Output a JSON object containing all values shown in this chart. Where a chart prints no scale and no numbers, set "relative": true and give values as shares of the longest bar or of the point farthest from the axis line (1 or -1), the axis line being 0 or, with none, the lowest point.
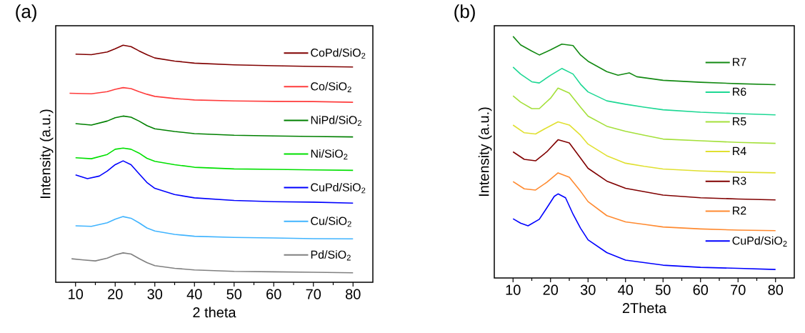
{
  "chart_data": [
    {
      "type": "line",
      "title": "(a)",
      "xlabel": "2 theta",
      "ylabel": "Intensity (a.u.)",
      "relative": true,
      "xlim": [
        5,
        85
      ],
      "xticks": [
        10,
        20,
        30,
        40,
        50,
        60,
        70,
        80
      ],
      "legend": "right",
      "series": [
        {
          "name": "CoPd/SiO$_{2}$",
          "color": "#800000",
          "x": [
            10,
            14,
            18,
            20,
            22,
            24,
            26,
            28,
            30,
            35,
            40,
            50,
            60,
            70,
            80
          ],
          "values": [
            0.962,
            0.96,
            0.971,
            0.985,
            1.0,
            0.994,
            0.976,
            0.96,
            0.946,
            0.933,
            0.924,
            0.917,
            0.913,
            0.91,
            0.908
          ]
        },
        {
          "name": "Co/SiO$_{2}$",
          "color": "#ff3c3c",
          "x": [
            8.5,
            14,
            18,
            20,
            22,
            24,
            26,
            28,
            30,
            35,
            40,
            50,
            60,
            70,
            80
          ],
          "values": [
            0.797,
            0.795,
            0.804,
            0.814,
            0.821,
            0.817,
            0.804,
            0.793,
            0.784,
            0.775,
            0.769,
            0.765,
            0.763,
            0.762,
            0.759
          ]
        },
        {
          "name": "NiPd/SiO$_{2}$",
          "color": "#008000",
          "x": [
            10,
            14,
            18,
            20,
            22,
            24,
            26,
            28,
            30,
            35,
            40,
            50,
            60,
            70,
            80
          ],
          "values": [
            0.669,
            0.663,
            0.68,
            0.694,
            0.701,
            0.696,
            0.68,
            0.661,
            0.647,
            0.636,
            0.627,
            0.62,
            0.617,
            0.615,
            0.613
          ]
        },
        {
          "name": "Ni/SiO$_{2}$",
          "color": "#00e000",
          "x": [
            10,
            14,
            18,
            20,
            22,
            24,
            26,
            28,
            30,
            35,
            40,
            50,
            60,
            70,
            80
          ],
          "values": [
            0.525,
            0.521,
            0.539,
            0.561,
            0.566,
            0.561,
            0.545,
            0.523,
            0.51,
            0.496,
            0.485,
            0.478,
            0.476,
            0.474,
            0.472
          ]
        },
        {
          "name": "CuPd/SiO$_{2}$",
          "color": "#0000ff",
          "x": [
            10,
            13,
            16,
            18,
            20,
            22,
            24,
            26,
            28,
            30,
            35,
            40,
            50,
            60,
            70,
            80
          ],
          "values": [
            0.453,
            0.437,
            0.448,
            0.469,
            0.496,
            0.512,
            0.496,
            0.458,
            0.421,
            0.396,
            0.37,
            0.356,
            0.345,
            0.34,
            0.338,
            0.334
          ]
        },
        {
          "name": "Cu/SiO$_{2}$",
          "color": "#40b4ff",
          "x": [
            10,
            14,
            18,
            20,
            22,
            24,
            26,
            28,
            30,
            35,
            40,
            50,
            60,
            70,
            80
          ],
          "values": [
            0.238,
            0.236,
            0.251,
            0.266,
            0.277,
            0.27,
            0.251,
            0.229,
            0.216,
            0.202,
            0.194,
            0.189,
            0.187,
            0.184,
            0.183
          ]
        },
        {
          "name": "Pd/SiO$_{2}$",
          "color": "#808080",
          "x": [
            9,
            12,
            15,
            18,
            20,
            22,
            24,
            26,
            28,
            30,
            35,
            40,
            50,
            60,
            70,
            80
          ],
          "values": [
            0.099,
            0.094,
            0.09,
            0.102,
            0.115,
            0.124,
            0.119,
            0.1,
            0.083,
            0.07,
            0.059,
            0.052,
            0.046,
            0.044,
            0.042,
            0.04
          ]
        }
      ]
    },
    {
      "type": "line",
      "title": "(b)",
      "xlabel": "2Theta",
      "ylabel": "Intensity (a.u.)",
      "relative": true,
      "xlim": [
        5,
        85
      ],
      "xticks": [
        10,
        20,
        30,
        40,
        50,
        60,
        70,
        80
      ],
      "legend": "right",
      "series": [
        {
          "name": "R7",
          "color": "#138a13",
          "x": [
            10,
            12,
            15,
            17,
            20,
            23,
            26,
            28,
            30,
            35,
            38,
            41,
            43,
            50,
            60,
            70,
            80
          ],
          "values": [
            1.0,
            0.965,
            0.939,
            0.923,
            0.944,
            0.968,
            0.962,
            0.923,
            0.897,
            0.854,
            0.839,
            0.849,
            0.833,
            0.818,
            0.81,
            0.804,
            0.8
          ]
        },
        {
          "name": "R6",
          "color": "#1dd894",
          "x": [
            10,
            12,
            15,
            17,
            20,
            23,
            26,
            28,
            30,
            35,
            40,
            45,
            50,
            60,
            70,
            80
          ],
          "values": [
            0.873,
            0.844,
            0.812,
            0.807,
            0.839,
            0.867,
            0.844,
            0.802,
            0.77,
            0.733,
            0.719,
            0.707,
            0.696,
            0.686,
            0.68,
            0.675
          ]
        },
        {
          "name": "R5",
          "color": "#a4e03a",
          "x": [
            10,
            12,
            15,
            17,
            20,
            22,
            25,
            28,
            30,
            35,
            40,
            45,
            50,
            60,
            70,
            80
          ],
          "values": [
            0.754,
            0.728,
            0.701,
            0.701,
            0.744,
            0.786,
            0.765,
            0.707,
            0.67,
            0.628,
            0.607,
            0.591,
            0.575,
            0.568,
            0.561,
            0.557
          ]
        },
        {
          "name": "R4",
          "color": "#e0e030",
          "x": [
            10,
            13,
            16,
            19,
            22,
            25,
            28,
            30,
            35,
            40,
            45,
            50,
            60,
            70,
            80
          ],
          "values": [
            0.633,
            0.601,
            0.596,
            0.622,
            0.646,
            0.633,
            0.591,
            0.554,
            0.506,
            0.475,
            0.462,
            0.451,
            0.443,
            0.438,
            0.435
          ]
        },
        {
          "name": "R3",
          "color": "#800000",
          "x": [
            10,
            13,
            16,
            19,
            22,
            25,
            28,
            30,
            35,
            40,
            45,
            50,
            60,
            70,
            80
          ],
          "values": [
            0.522,
            0.491,
            0.485,
            0.522,
            0.572,
            0.559,
            0.496,
            0.454,
            0.401,
            0.371,
            0.357,
            0.343,
            0.332,
            0.327,
            0.323
          ]
        },
        {
          "name": "R2",
          "color": "#ff8a30",
          "x": [
            10,
            13,
            16,
            19,
            22,
            25,
            28,
            30,
            35,
            40,
            45,
            50,
            60,
            70,
            80
          ],
          "values": [
            0.399,
            0.369,
            0.364,
            0.396,
            0.435,
            0.417,
            0.359,
            0.316,
            0.258,
            0.232,
            0.222,
            0.211,
            0.203,
            0.198,
            0.196
          ]
        },
        {
          "name": "CuPd/SiO$_{2}$",
          "color": "#0000ff",
          "x": [
            10,
            12,
            14,
            17,
            19,
            21,
            22,
            24,
            26,
            28,
            30,
            35,
            40,
            50,
            60,
            70,
            80
          ],
          "values": [
            0.245,
            0.227,
            0.216,
            0.243,
            0.29,
            0.338,
            0.348,
            0.332,
            0.264,
            0.206,
            0.158,
            0.105,
            0.074,
            0.053,
            0.044,
            0.04,
            0.035
          ]
        }
      ]
    }
  ]
}
